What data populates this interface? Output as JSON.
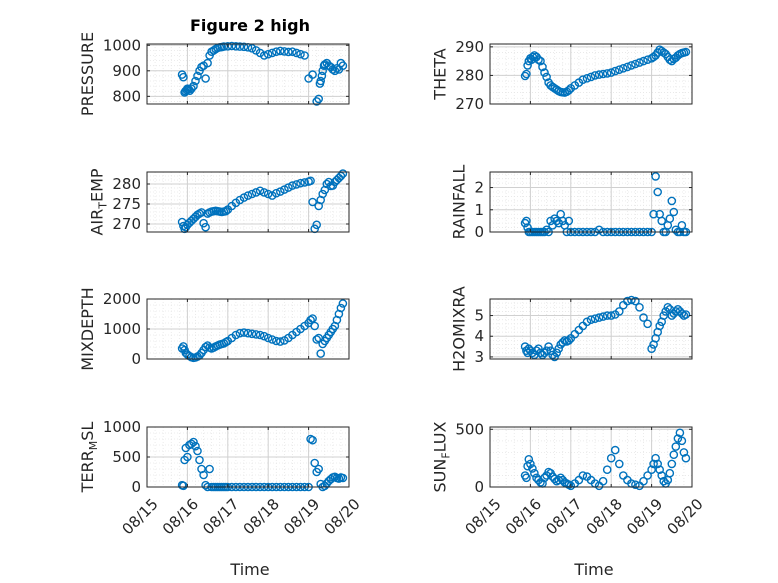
{
  "figure": {
    "title": "Figure 2 high",
    "x_label": "Time"
  },
  "colors": {
    "marker": "#0072BD",
    "axis": "#262626",
    "grid": "#d0d0d0",
    "minor_grid": "#e6e6e6"
  },
  "chart_data": [
    {
      "type": "scatter",
      "ylabel": "PRESSURE",
      "ylim": [
        770,
        1005
      ],
      "yticks": [
        800,
        900,
        1000
      ],
      "xlim": [
        0,
        5
      ],
      "grid": true,
      "x": [
        0.87,
        0.9,
        0.93,
        0.95,
        0.98,
        1.0,
        1.03,
        1.06,
        1.1,
        1.15,
        1.2,
        1.25,
        1.3,
        1.35,
        1.4,
        1.45,
        1.5,
        1.55,
        1.6,
        1.65,
        1.7,
        1.75,
        1.8,
        1.85,
        1.9,
        2.0,
        2.1,
        2.2,
        2.3,
        2.4,
        2.5,
        2.6,
        2.7,
        2.8,
        2.9,
        3.0,
        3.1,
        3.2,
        3.3,
        3.4,
        3.5,
        3.6,
        3.7,
        3.8,
        3.9,
        4.0,
        4.1,
        4.2,
        4.25,
        4.28,
        4.3,
        4.33,
        4.35,
        4.38,
        4.4,
        4.45,
        4.5,
        4.55,
        4.6,
        4.65,
        4.7,
        4.75,
        4.8,
        4.85
      ],
      "y": [
        885,
        875,
        815,
        820,
        825,
        830,
        828,
        822,
        830,
        840,
        860,
        880,
        900,
        915,
        920,
        870,
        930,
        960,
        975,
        980,
        985,
        990,
        992,
        993,
        995,
        996,
        997,
        996,
        995,
        994,
        992,
        988,
        980,
        970,
        960,
        965,
        970,
        975,
        978,
        976,
        974,
        975,
        970,
        965,
        960,
        870,
        885,
        780,
        790,
        850,
        860,
        880,
        900,
        920,
        925,
        930,
        920,
        915,
        905,
        900,
        910,
        905,
        930,
        920
      ]
    },
    {
      "type": "scatter",
      "ylabel": "THETA",
      "ylim": [
        270,
        291
      ],
      "yticks": [
        270,
        280,
        290
      ],
      "xlim": [
        0,
        5
      ],
      "grid": true,
      "x": [
        0.87,
        0.9,
        0.93,
        0.96,
        1.0,
        1.03,
        1.06,
        1.1,
        1.15,
        1.2,
        1.25,
        1.3,
        1.35,
        1.4,
        1.45,
        1.5,
        1.55,
        1.6,
        1.65,
        1.7,
        1.75,
        1.8,
        1.85,
        1.9,
        1.95,
        2.0,
        2.1,
        2.2,
        2.3,
        2.4,
        2.5,
        2.6,
        2.7,
        2.8,
        2.9,
        3.0,
        3.1,
        3.2,
        3.3,
        3.4,
        3.5,
        3.6,
        3.7,
        3.8,
        3.9,
        4.0,
        4.05,
        4.1,
        4.15,
        4.2,
        4.25,
        4.3,
        4.35,
        4.4,
        4.45,
        4.5,
        4.55,
        4.6,
        4.65,
        4.7,
        4.75,
        4.8,
        4.85
      ],
      "y": [
        279.8,
        280.5,
        283.5,
        285,
        286,
        285.5,
        286.5,
        287,
        286.5,
        285.5,
        285,
        283,
        281,
        279.5,
        277.5,
        276.5,
        276,
        275.5,
        275,
        274.5,
        274.2,
        274.1,
        274,
        274.3,
        274.8,
        275.5,
        276.5,
        277.5,
        278.5,
        279,
        279.5,
        280,
        280.3,
        280.5,
        280.7,
        281,
        281.5,
        282,
        282.5,
        283,
        283.5,
        284,
        284.5,
        285,
        285.5,
        286,
        286.5,
        287,
        288,
        289,
        288.5,
        288,
        287.5,
        286.5,
        285.5,
        285,
        285.8,
        286.2,
        287,
        287.5,
        287.8,
        288,
        288.2
      ]
    },
    {
      "type": "scatter",
      "ylabel": "AIR_TEMP",
      "ylim": [
        268,
        283
      ],
      "yticks": [
        270,
        275,
        280
      ],
      "xlim": [
        0,
        5
      ],
      "grid": true,
      "x": [
        0.87,
        0.9,
        0.93,
        0.96,
        1.0,
        1.05,
        1.1,
        1.15,
        1.2,
        1.25,
        1.3,
        1.35,
        1.4,
        1.45,
        1.5,
        1.55,
        1.6,
        1.65,
        1.7,
        1.75,
        1.8,
        1.85,
        1.9,
        1.95,
        2.0,
        2.1,
        2.2,
        2.3,
        2.4,
        2.5,
        2.6,
        2.7,
        2.8,
        2.9,
        3.0,
        3.1,
        3.2,
        3.3,
        3.4,
        3.5,
        3.6,
        3.7,
        3.8,
        3.9,
        4.0,
        4.05,
        4.1,
        4.15,
        4.2,
        4.25,
        4.3,
        4.35,
        4.4,
        4.45,
        4.5,
        4.55,
        4.6,
        4.65,
        4.7,
        4.75,
        4.8,
        4.85
      ],
      "y": [
        270.5,
        269.5,
        268.8,
        269.2,
        269.8,
        270.3,
        270.8,
        271.3,
        271.8,
        272.3,
        272.6,
        272.9,
        270.2,
        269.2,
        272.6,
        272.9,
        273.1,
        273.2,
        273.3,
        273.2,
        273.1,
        273,
        273.1,
        273.2,
        273.6,
        274.5,
        275.3,
        276,
        276.6,
        277.1,
        277.5,
        277.9,
        278.3,
        277.9,
        277.5,
        277.1,
        277.7,
        278.1,
        278.6,
        279.1,
        279.6,
        279.9,
        280.2,
        280.4,
        280.6,
        280.8,
        275.5,
        268.8,
        269.8,
        274.5,
        276,
        277.5,
        278.5,
        280,
        280.5,
        279.5,
        279.6,
        280.5,
        281,
        281.5,
        282,
        282.6
      ]
    },
    {
      "type": "scatter",
      "ylabel": "RAINFALL",
      "ylim": [
        0,
        2.7
      ],
      "yticks": [
        0,
        1,
        2
      ],
      "xlim": [
        0,
        5
      ],
      "grid": true,
      "x": [
        0.87,
        0.9,
        0.93,
        0.96,
        1.0,
        1.05,
        1.1,
        1.15,
        1.2,
        1.25,
        1.3,
        1.35,
        1.4,
        1.45,
        1.5,
        1.55,
        1.6,
        1.65,
        1.7,
        1.75,
        1.8,
        1.85,
        1.9,
        1.95,
        2.0,
        2.1,
        2.2,
        2.3,
        2.4,
        2.5,
        2.6,
        2.7,
        2.8,
        2.9,
        3.0,
        3.1,
        3.2,
        3.3,
        3.4,
        3.5,
        3.6,
        3.7,
        3.8,
        3.9,
        4.0,
        4.05,
        4.1,
        4.15,
        4.2,
        4.25,
        4.3,
        4.35,
        4.4,
        4.45,
        4.5,
        4.55,
        4.6,
        4.65,
        4.7,
        4.75,
        4.8,
        4.85
      ],
      "y": [
        0.4,
        0.5,
        0.2,
        0,
        0,
        0,
        0,
        0,
        0,
        0,
        0,
        0,
        0.1,
        0,
        0.5,
        0.3,
        0.6,
        0.5,
        0.4,
        0.8,
        0.5,
        0.3,
        0,
        0.5,
        0,
        0,
        0,
        0,
        0,
        0,
        0,
        0.1,
        0,
        0,
        0,
        0,
        0,
        0,
        0,
        0,
        0,
        0,
        0,
        0,
        0,
        0.8,
        2.5,
        1.8,
        0.8,
        0.5,
        0,
        0,
        0.3,
        0.6,
        1.4,
        0.9,
        0.1,
        0,
        0,
        0.3,
        0,
        0
      ]
    },
    {
      "type": "scatter",
      "ylabel": "MIXDEPTH",
      "ylim": [
        0,
        2000
      ],
      "yticks": [
        0,
        1000,
        2000
      ],
      "xlim": [
        0,
        5
      ],
      "grid": true,
      "x": [
        0.87,
        0.9,
        0.93,
        0.96,
        1.0,
        1.05,
        1.1,
        1.15,
        1.2,
        1.25,
        1.3,
        1.35,
        1.4,
        1.45,
        1.5,
        1.55,
        1.6,
        1.65,
        1.7,
        1.75,
        1.8,
        1.85,
        1.9,
        1.95,
        2.0,
        2.1,
        2.2,
        2.3,
        2.4,
        2.5,
        2.6,
        2.7,
        2.8,
        2.9,
        3.0,
        3.1,
        3.2,
        3.3,
        3.4,
        3.5,
        3.6,
        3.7,
        3.8,
        3.9,
        4.0,
        4.05,
        4.1,
        4.15,
        4.2,
        4.25,
        4.3,
        4.35,
        4.4,
        4.45,
        4.5,
        4.55,
        4.6,
        4.65,
        4.7,
        4.75,
        4.8,
        4.85
      ],
      "y": [
        350,
        420,
        300,
        200,
        150,
        100,
        60,
        40,
        50,
        80,
        120,
        200,
        300,
        400,
        450,
        380,
        350,
        380,
        420,
        450,
        480,
        500,
        520,
        560,
        600,
        700,
        800,
        860,
        880,
        860,
        840,
        820,
        800,
        760,
        700,
        650,
        600,
        580,
        620,
        700,
        800,
        900,
        1000,
        1100,
        1200,
        1300,
        1350,
        1100,
        650,
        700,
        180,
        500,
        600,
        700,
        800,
        900,
        1000,
        1100,
        1300,
        1500,
        1700,
        1850
      ]
    },
    {
      "type": "scatter",
      "ylabel": "H2OMIXRA",
      "ylim": [
        2.9,
        5.8
      ],
      "yticks": [
        3,
        4,
        5
      ],
      "xlim": [
        0,
        5
      ],
      "grid": true,
      "x": [
        0.87,
        0.9,
        0.93,
        0.96,
        1.0,
        1.05,
        1.1,
        1.15,
        1.2,
        1.25,
        1.3,
        1.35,
        1.4,
        1.45,
        1.5,
        1.55,
        1.6,
        1.65,
        1.7,
        1.75,
        1.8,
        1.85,
        1.9,
        1.95,
        2.0,
        2.1,
        2.2,
        2.3,
        2.4,
        2.5,
        2.6,
        2.7,
        2.8,
        2.9,
        3.0,
        3.1,
        3.2,
        3.3,
        3.4,
        3.5,
        3.6,
        3.7,
        3.8,
        3.9,
        4.0,
        4.05,
        4.1,
        4.15,
        4.2,
        4.25,
        4.3,
        4.35,
        4.4,
        4.45,
        4.5,
        4.55,
        4.6,
        4.65,
        4.7,
        4.75,
        4.8,
        4.85
      ],
      "y": [
        3.5,
        3.3,
        3.2,
        3.4,
        3.3,
        3.2,
        3.1,
        3.3,
        3.4,
        3.2,
        3.1,
        3.2,
        3.3,
        3.5,
        3.3,
        3.1,
        3.0,
        3.2,
        3.4,
        3.6,
        3.7,
        3.8,
        3.75,
        3.8,
        3.9,
        4.1,
        4.3,
        4.5,
        4.7,
        4.8,
        4.85,
        4.9,
        4.95,
        5.0,
        5.0,
        5.05,
        5.2,
        5.5,
        5.7,
        5.75,
        5.7,
        5.4,
        4.9,
        4.6,
        3.4,
        3.6,
        3.9,
        4.2,
        4.5,
        4.7,
        5.0,
        5.2,
        5.4,
        5.3,
        5.0,
        5.1,
        5.2,
        5.3,
        5.2,
        5.1,
        5.0,
        5.05
      ]
    },
    {
      "type": "scatter",
      "ylabel": "TERR_MSL",
      "ylim": [
        0,
        1000
      ],
      "yticks": [
        0,
        500,
        1000
      ],
      "xlim": [
        0,
        5
      ],
      "grid": true,
      "x": [
        0.87,
        0.9,
        0.93,
        0.96,
        1.0,
        1.05,
        1.1,
        1.15,
        1.2,
        1.25,
        1.3,
        1.35,
        1.4,
        1.45,
        1.5,
        1.55,
        1.6,
        1.65,
        1.7,
        1.75,
        1.8,
        1.85,
        1.9,
        1.95,
        2.0,
        2.1,
        2.2,
        2.3,
        2.4,
        2.5,
        2.6,
        2.7,
        2.8,
        2.9,
        3.0,
        3.1,
        3.2,
        3.3,
        3.4,
        3.5,
        3.6,
        3.7,
        3.8,
        3.9,
        4.0,
        4.05,
        4.1,
        4.15,
        4.2,
        4.25,
        4.3,
        4.35,
        4.4,
        4.45,
        4.5,
        4.55,
        4.6,
        4.65,
        4.7,
        4.75,
        4.8,
        4.85
      ],
      "y": [
        30,
        20,
        450,
        650,
        500,
        700,
        720,
        750,
        680,
        600,
        450,
        300,
        200,
        30,
        0,
        300,
        0,
        0,
        0,
        0,
        0,
        0,
        0,
        0,
        0,
        0,
        0,
        0,
        0,
        0,
        0,
        0,
        0,
        0,
        0,
        0,
        0,
        0,
        0,
        0,
        0,
        0,
        0,
        0,
        0,
        800,
        780,
        400,
        250,
        300,
        50,
        0,
        20,
        60,
        100,
        130,
        160,
        170,
        150,
        140,
        160,
        150
      ]
    },
    {
      "type": "scatter",
      "ylabel": "SUN_FLUX",
      "ylim": [
        0,
        520
      ],
      "yticks": [
        0,
        500
      ],
      "xlim": [
        0,
        5
      ],
      "grid": true,
      "x": [
        0.87,
        0.9,
        0.93,
        0.96,
        1.0,
        1.05,
        1.1,
        1.15,
        1.2,
        1.25,
        1.3,
        1.35,
        1.4,
        1.45,
        1.5,
        1.55,
        1.6,
        1.65,
        1.7,
        1.75,
        1.8,
        1.85,
        1.9,
        1.95,
        2.0,
        2.1,
        2.2,
        2.3,
        2.4,
        2.5,
        2.6,
        2.7,
        2.8,
        2.9,
        3.0,
        3.1,
        3.2,
        3.3,
        3.4,
        3.5,
        3.6,
        3.7,
        3.8,
        3.9,
        4.0,
        4.05,
        4.1,
        4.15,
        4.2,
        4.25,
        4.3,
        4.35,
        4.4,
        4.45,
        4.5,
        4.55,
        4.6,
        4.65,
        4.7,
        4.75,
        4.8,
        4.85
      ],
      "y": [
        100,
        80,
        180,
        240,
        200,
        160,
        120,
        80,
        60,
        40,
        30,
        80,
        100,
        130,
        120,
        90,
        70,
        50,
        60,
        80,
        60,
        40,
        30,
        20,
        10,
        30,
        60,
        100,
        90,
        60,
        30,
        10,
        50,
        150,
        250,
        320,
        200,
        100,
        60,
        30,
        20,
        10,
        50,
        100,
        150,
        200,
        250,
        200,
        150,
        100,
        50,
        30,
        60,
        120,
        200,
        280,
        350,
        420,
        470,
        400,
        300,
        250
      ]
    }
  ],
  "x_axis": {
    "tick_labels": [
      "08/15",
      "08/16",
      "08/17",
      "08/18",
      "08/19",
      "08/20"
    ]
  }
}
